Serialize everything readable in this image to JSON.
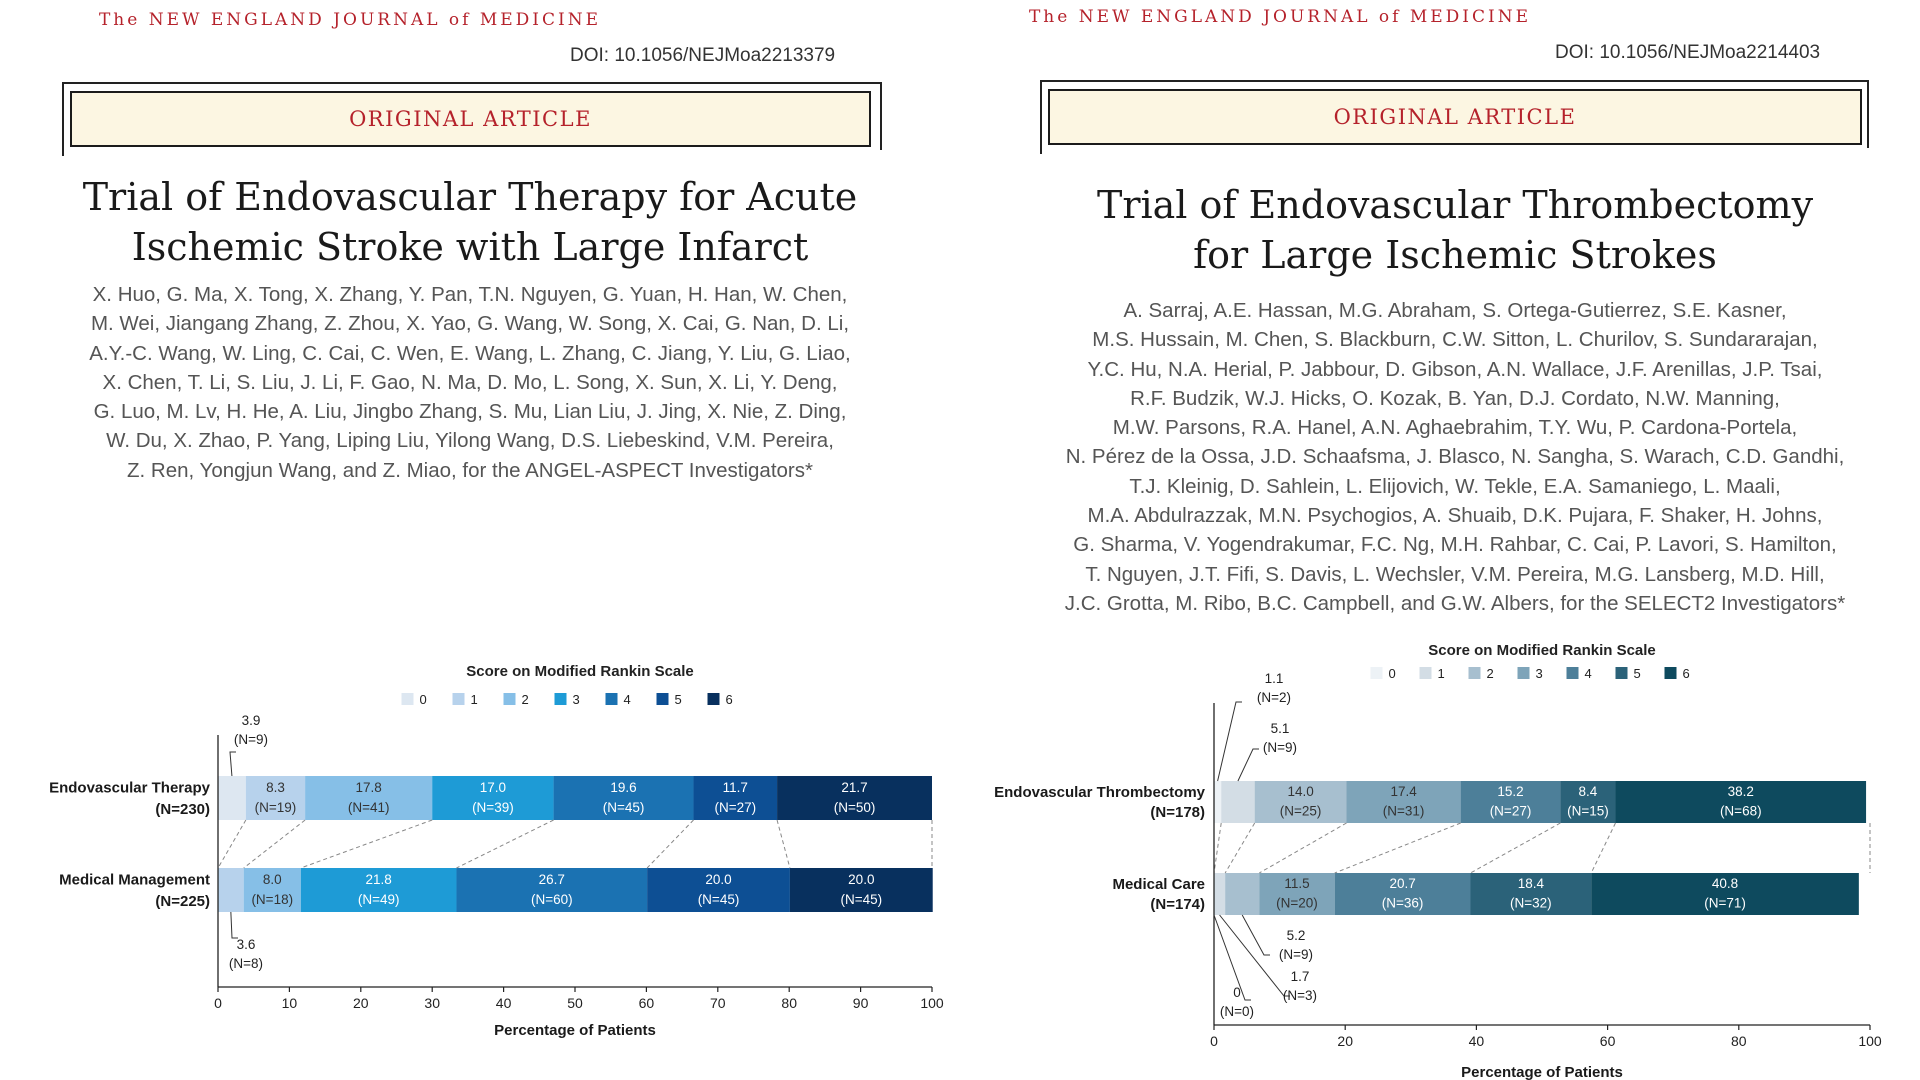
{
  "left": {
    "journal": "The NEW ENGLAND JOURNAL of MEDICINE",
    "doi": "DOI: 10.1056/NEJMoa2213379",
    "section": "ORIGINAL ARTICLE",
    "title_lines": [
      "Trial of Endovascular Therapy for Acute",
      "Ischemic Stroke with Large Infarct"
    ],
    "author_lines": [
      "X. Huo, G. Ma, X. Tong, X. Zhang, Y. Pan, T.N. Nguyen, G. Yuan, H. Han, W. Chen,",
      "M. Wei, Jiangang Zhang, Z. Zhou, X. Yao, G. Wang, W. Song, X. Cai, G. Nan, D. Li,",
      "A.Y.-C. Wang, W. Ling, C. Cai, C. Wen, E. Wang, L. Zhang, C. Jiang, Y. Liu, G. Liao,",
      "X. Chen, T. Li, S. Liu, J. Li, F. Gao, N. Ma, D. Mo, L. Song, X. Sun, X. Li, Y. Deng,",
      "G. Luo, M. Lv, H. He, A. Liu, Jingbo Zhang, S. Mu, Lian Liu, J. Jing, X. Nie, Z. Ding,",
      "W. Du, X. Zhao, P. Yang, Liping Liu, Yilong Wang, D.S. Liebeskind, V.M. Pereira,",
      "Z. Ren, Yongjun Wang, and Z. Miao, for the ANGEL-ASPECT Investigators*"
    ]
  },
  "right": {
    "journal": "The NEW ENGLAND JOURNAL of MEDICINE",
    "doi": "DOI: 10.1056/NEJMoa2214403",
    "section": "ORIGINAL ARTICLE",
    "title_lines": [
      "Trial of Endovascular Thrombectomy",
      "for Large Ischemic Strokes"
    ],
    "author_lines": [
      "A. Sarraj, A.E. Hassan, M.G. Abraham, S. Ortega-Gutierrez, S.E. Kasner,",
      "M.S. Hussain, M. Chen, S. Blackburn, C.W. Sitton, L. Churilov, S. Sundararajan,",
      "Y.C. Hu, N.A. Herial, P. Jabbour, D. Gibson, A.N. Wallace, J.F. Arenillas, J.P. Tsai,",
      "R.F. Budzik, W.J. Hicks, O. Kozak, B. Yan, D.J. Cordato, N.W. Manning,",
      "M.W. Parsons, R.A. Hanel, A.N. Aghaebrahim, T.Y. Wu, P. Cardona-Portela,",
      "N. Pérez de la Ossa, J.D. Schaafsma, J. Blasco, N. Sangha, S. Warach, C.D. Gandhi,",
      "T.J. Kleinig, D. Sahlein, L. Elijovich, W. Tekle, E.A. Samaniego, L. Maali,",
      "M.A. Abdulrazzak, M.N. Psychogios, A. Shuaib, D.K. Pujara, F. Shaker, H. Johns,",
      "G. Sharma, V. Yogendrakumar, F.C. Ng, M.H. Rahbar, C. Cai, P. Lavori, S. Hamilton,",
      "T. Nguyen, J.T. Fifi, S. Davis, L. Wechsler, V.M. Pereira, M.G. Lansberg, M.D. Hill,",
      "J.C. Grotta, M. Ribo, B.C. Campbell, and G.W. Albers, for the SELECT2 Investigators*"
    ]
  },
  "chart_data": [
    {
      "type": "bar",
      "orientation": "horizontal-stacked",
      "legend_title": "Score on Modified Rankin Scale",
      "legend_placement": "top-center",
      "categories": [
        "0",
        "1",
        "2",
        "3",
        "4",
        "5",
        "6"
      ],
      "colors": [
        "#dde7f1",
        "#b7d2ec",
        "#86bfe7",
        "#1e9bd6",
        "#1b72b2",
        "#0d4f94",
        "#08305e"
      ],
      "xlabel": "Percentage of Patients",
      "xlim": [
        0,
        100
      ],
      "xticks": [
        0,
        10,
        20,
        30,
        40,
        50,
        60,
        70,
        80,
        90,
        100
      ],
      "series": [
        {
          "name": "Endovascular Therapy",
          "n_label": "(N=230)",
          "values": [
            3.9,
            8.3,
            17.8,
            17.0,
            19.6,
            11.7,
            21.7
          ],
          "counts": [
            "(N=9)",
            "(N=19)",
            "(N=41)",
            "(N=39)",
            "(N=45)",
            "(N=27)",
            "(N=50)"
          ]
        },
        {
          "name": "Medical Management",
          "n_label": "(N=225)",
          "values": [
            0.0,
            3.6,
            8.0,
            21.8,
            26.7,
            20.0,
            20.0
          ],
          "counts": [
            "",
            "(N=8)",
            "(N=18)",
            "(N=49)",
            "(N=60)",
            "(N=45)",
            "(N=45)"
          ]
        }
      ],
      "callouts": [
        {
          "series": 0,
          "index": 0,
          "value": "3.9",
          "count": "(N=9)"
        },
        {
          "series": 1,
          "index": 1,
          "value": "3.6",
          "count": "(N=8)"
        }
      ]
    },
    {
      "type": "bar",
      "orientation": "horizontal-stacked",
      "legend_title": "Score on Modified Rankin Scale",
      "legend_placement": "top-center",
      "categories": [
        "0",
        "1",
        "2",
        "3",
        "4",
        "5",
        "6"
      ],
      "colors": [
        "#edf2f6",
        "#d3dde5",
        "#a7bfcf",
        "#7ea4b9",
        "#4d7f99",
        "#2b6279",
        "#0e4a5e"
      ],
      "xlabel": "Percentage of Patients",
      "xlim": [
        0,
        100
      ],
      "xticks": [
        0,
        20,
        40,
        60,
        80,
        100
      ],
      "series": [
        {
          "name": "Endovascular Thrombectomy",
          "n_label": "(N=178)",
          "values": [
            1.1,
            5.1,
            14.0,
            17.4,
            15.2,
            8.4,
            38.2
          ],
          "counts": [
            "(N=2)",
            "(N=9)",
            "(N=25)",
            "(N=31)",
            "(N=27)",
            "(N=15)",
            "(N=68)"
          ]
        },
        {
          "name": "Medical Care",
          "n_label": "(N=174)",
          "values": [
            0.0,
            1.7,
            5.2,
            11.5,
            20.7,
            18.4,
            40.8
          ],
          "counts": [
            "(N=0)",
            "(N=3)",
            "(N=9)",
            "(N=20)",
            "(N=36)",
            "(N=32)",
            "(N=71)"
          ]
        }
      ],
      "callouts": [
        {
          "series": 0,
          "index": 0,
          "value": "1.1",
          "count": "(N=2)"
        },
        {
          "series": 0,
          "index": 1,
          "value": "5.1",
          "count": "(N=9)"
        },
        {
          "series": 1,
          "index": 2,
          "value": "5.2",
          "count": "(N=9)"
        },
        {
          "series": 1,
          "index": 1,
          "value": "1.7",
          "count": "(N=3)"
        },
        {
          "series": 1,
          "index": 0,
          "value": "0",
          "count": "(N=0)"
        }
      ]
    }
  ]
}
